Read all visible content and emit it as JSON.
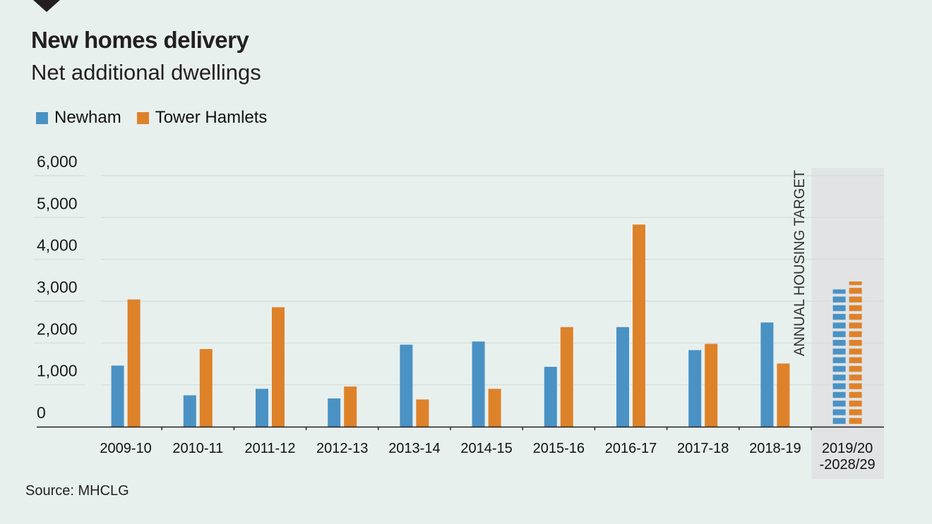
{
  "header": {
    "title": "New homes delivery",
    "subtitle": "Net additional dwellings"
  },
  "legend": {
    "items": [
      {
        "label": "Newham",
        "color": "#4A92C4"
      },
      {
        "label": "Tower Hamlets",
        "color": "#DE8229"
      }
    ]
  },
  "source": "Source: MHCLG",
  "colors": {
    "background": "#E8F0EE",
    "target_band": "#E1E3E4",
    "gridline": "#D3DBDA",
    "axis": "#231f20"
  },
  "chart_data": {
    "type": "bar",
    "title": "New homes delivery",
    "subtitle": "Net additional dwellings",
    "xlabel": "",
    "ylabel": "",
    "ylim": [
      0,
      6000
    ],
    "yticks": [
      0,
      1000,
      2000,
      3000,
      4000,
      5000,
      6000
    ],
    "ytick_labels": [
      "0",
      "1,000",
      "2,000",
      "3,000",
      "4,000",
      "5,000",
      "6,000"
    ],
    "grid": true,
    "legend_position": "top-left",
    "categories": [
      "2009-10",
      "2010-11",
      "2011-12",
      "2012-13",
      "2013-14",
      "2014-15",
      "2015-16",
      "2016-17",
      "2017-18",
      "2018-19",
      "2019/20 -2028/29"
    ],
    "category_lines": [
      [
        "2009-10"
      ],
      [
        "2010-11"
      ],
      [
        "2011-12"
      ],
      [
        "2012-13"
      ],
      [
        "2013-14"
      ],
      [
        "2014-15"
      ],
      [
        "2015-16"
      ],
      [
        "2016-17"
      ],
      [
        "2017-18"
      ],
      [
        "2018-19"
      ],
      [
        "2019/20",
        "-2028/29"
      ]
    ],
    "series": [
      {
        "name": "Newham",
        "color": "#4A92C4",
        "values": [
          1460,
          750,
          905,
          675,
          1960,
          2035,
          1430,
          2380,
          1830,
          2490,
          3280
        ]
      },
      {
        "name": "Tower Hamlets",
        "color": "#DE8229",
        "values": [
          3040,
          1855,
          2855,
          960,
          650,
          905,
          2380,
          4830,
          1980,
          1510,
          3470
        ]
      }
    ],
    "annotations": [
      {
        "text": "ANNUAL HOUSING TARGET",
        "applies_to": "2019/20 -2028/29",
        "style": "dashed bars on shaded band"
      }
    ]
  }
}
